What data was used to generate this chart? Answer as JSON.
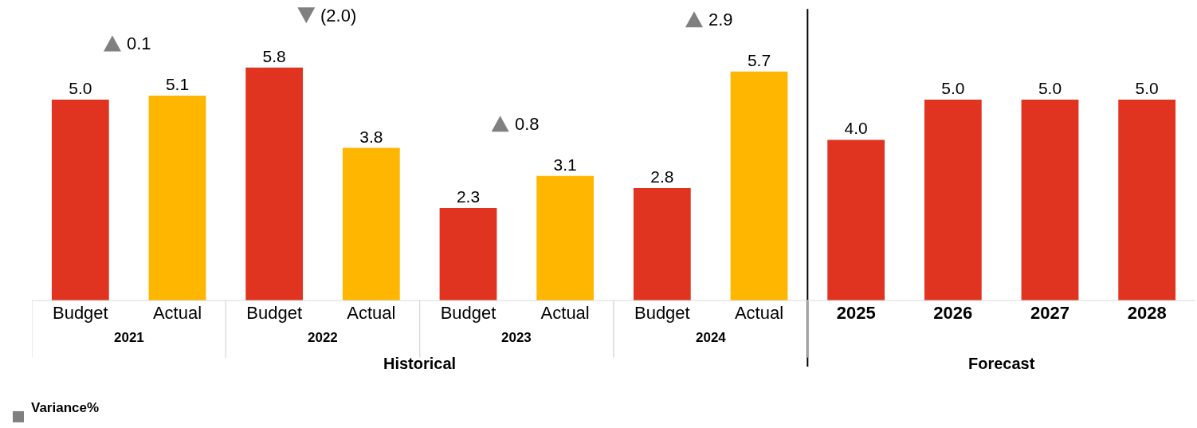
{
  "chart_data": {
    "type": "bar",
    "categories": [
      "Budget",
      "Actual",
      "Budget",
      "Actual",
      "Budget",
      "Actual",
      "Budget",
      "Actual",
      "2025",
      "2026",
      "2027",
      "2028"
    ],
    "colors": [
      "#e03320",
      "#ffb600",
      "#e03320",
      "#ffb600",
      "#e03320",
      "#ffb600",
      "#e03320",
      "#ffb600",
      "#e03320",
      "#e03320",
      "#e03320",
      "#e03320"
    ],
    "values": [
      5.0,
      5.1,
      5.8,
      3.8,
      2.3,
      3.1,
      2.8,
      5.7,
      4.0,
      5.0,
      5.0,
      5.0
    ],
    "value_labels": [
      "5.0",
      "5.1",
      "5.8",
      "3.8",
      "2.3",
      "3.1",
      "2.8",
      "5.7",
      "4.0",
      "5.0",
      "5.0",
      "5.0"
    ],
    "annotations": [
      "2021",
      "2022",
      "2023",
      "2024",
      "Historical",
      "Forecast",
      "0.1",
      "(2.0)",
      "0.8",
      "2.9",
      "Variance%"
    ]
  }
}
